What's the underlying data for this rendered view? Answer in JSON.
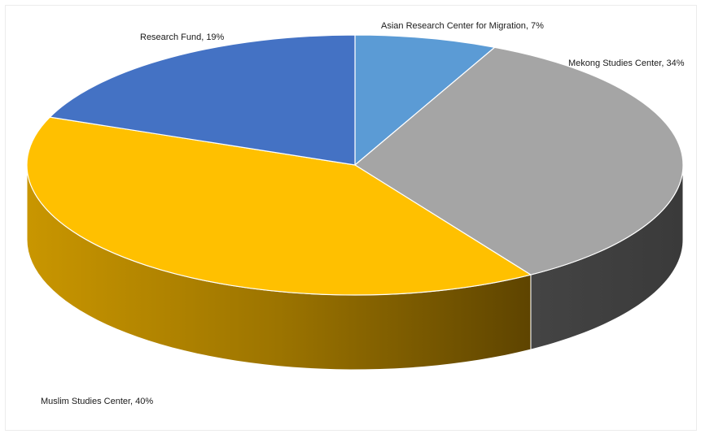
{
  "chart_data": {
    "type": "pie",
    "style": "3d",
    "title": "",
    "slices": [
      {
        "label": "Asian Research Center for Migration",
        "value": 7,
        "display": "Asian Research Center for Migration, 7%",
        "color": "#5B9BD5"
      },
      {
        "label": "Mekong Studies Center",
        "value": 34,
        "display": "Mekong Studies Center, 34%",
        "color": "#A5A5A5"
      },
      {
        "label": "Muslim Studies Center",
        "value": 40,
        "display": "Muslim Studies Center, 40%",
        "color": "#FFC000"
      },
      {
        "label": "Research Fund",
        "value": 19,
        "display": "Research Fund, 19%",
        "color": "#4472C4"
      }
    ],
    "start_position": "top",
    "direction": "clockwise",
    "legend": "none",
    "data_labels": "category name and percentage"
  }
}
